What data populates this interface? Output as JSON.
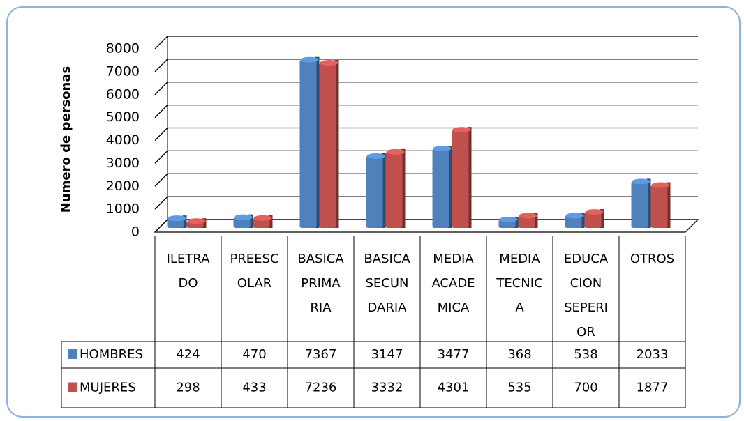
{
  "chart_data": {
    "type": "bar3d",
    "y_label": "Numero de personas",
    "categories": [
      "ILETRA\nDO",
      "PREESC\nOLAR",
      "BASICA\nPRIMA\nRIA",
      "BASICA\nSECUN\nDARIA",
      "MEDIA\nACADE\nMICA",
      "MEDIA\nTECNIC\nA",
      "EDUCA\nCION\nSEPERI\nOR",
      "OTROS"
    ],
    "series": [
      {
        "name": "HOMBRES",
        "color": "#4f81bd",
        "values": [
          424,
          470,
          7367,
          3147,
          3477,
          368,
          538,
          2033
        ]
      },
      {
        "name": "MUJERES",
        "color": "#c0504d",
        "values": [
          298,
          433,
          7236,
          3332,
          4301,
          535,
          700,
          1877
        ]
      }
    ],
    "ylim": [
      0,
      8000
    ],
    "yticks": [
      0,
      1000,
      2000,
      3000,
      4000,
      5000,
      6000,
      7000,
      8000
    ],
    "grid": true
  }
}
